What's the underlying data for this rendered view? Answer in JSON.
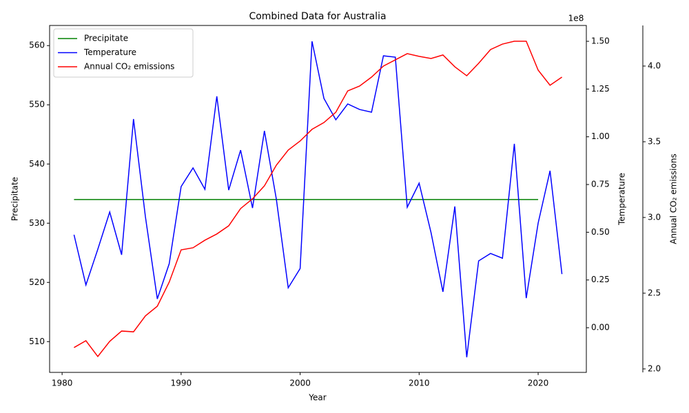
{
  "chart_data": {
    "type": "line",
    "title": "Combined Data for Australia",
    "x_label": "Year",
    "x": [
      1981,
      1982,
      1983,
      1984,
      1985,
      1986,
      1987,
      1988,
      1989,
      1990,
      1991,
      1992,
      1993,
      1994,
      1995,
      1996,
      1997,
      1998,
      1999,
      2000,
      2001,
      2002,
      2003,
      2004,
      2005,
      2006,
      2007,
      2008,
      2009,
      2010,
      2011,
      2012,
      2013,
      2014,
      2015,
      2016,
      2017,
      2018,
      2019,
      2020,
      2021,
      2022
    ],
    "xlim": [
      1978.95,
      2024.05
    ],
    "xticks": [
      1980,
      1990,
      2000,
      2010,
      2020
    ],
    "y_label": "Precipitate",
    "ylim": [
      504.8,
      563.4
    ],
    "yticks": [
      510,
      520,
      530,
      540,
      550,
      560
    ],
    "y2_label": "Temperature",
    "y2_offset_label": "1e8",
    "y2lim": [
      -0.234,
      1.583
    ],
    "y2ticks": [
      {
        "value": 0,
        "label": "0.00"
      },
      {
        "value": 0.25,
        "label": "0.25"
      },
      {
        "value": 0.5,
        "label": "0.50"
      },
      {
        "value": 0.75,
        "label": "0.75"
      },
      {
        "value": 1,
        "label": "1.00"
      },
      {
        "value": 1.25,
        "label": "1.25"
      },
      {
        "value": 1.5,
        "label": "1.50"
      }
    ],
    "y3_label": "Annual CO₂ emissions",
    "y3lim": [
      1.977,
      4.268
    ],
    "y3ticks": [
      {
        "value": 2,
        "label": "2.0"
      },
      {
        "value": 2.5,
        "label": "2.5"
      },
      {
        "value": 3,
        "label": "3.0"
      },
      {
        "value": 3.5,
        "label": "3.5"
      },
      {
        "value": 4,
        "label": "4.0"
      }
    ],
    "legend": "upper left",
    "series": [
      {
        "name": "Precipitate",
        "color": "#008000",
        "axis": "y",
        "values": [
          534,
          534,
          534,
          534,
          534,
          534,
          534,
          534,
          534,
          534,
          534,
          534,
          534,
          534,
          534,
          534,
          534,
          534,
          534,
          534,
          534,
          534,
          534,
          534,
          534,
          534,
          534,
          534,
          534,
          534,
          534,
          534,
          534,
          534,
          534,
          534,
          534,
          534,
          534,
          534,
          null,
          null
        ]
      },
      {
        "name": "Temperature",
        "color": "#0000ff",
        "axis": "y2",
        "values": [
          0.487,
          0.224,
          0.411,
          0.606,
          0.382,
          1.093,
          0.581,
          0.151,
          0.335,
          0.739,
          0.837,
          0.725,
          1.212,
          0.721,
          0.93,
          0.627,
          1.031,
          0.674,
          0.209,
          0.31,
          1.5,
          1.201,
          1.089,
          1.172,
          1.143,
          1.129,
          1.424,
          1.417,
          0.631,
          0.757,
          0.498,
          0.188,
          0.635,
          -0.155,
          0.35,
          0.389,
          0.364,
          0.963,
          0.155,
          0.548,
          0.822,
          0.281
        ]
      },
      {
        "name": "Annual CO₂ emissions",
        "color": "#ff0000",
        "axis": "y3",
        "values": [
          2.141,
          2.186,
          2.082,
          2.182,
          2.25,
          2.245,
          2.35,
          2.414,
          2.573,
          2.786,
          2.8,
          2.85,
          2.891,
          2.945,
          3.059,
          3.123,
          3.209,
          3.345,
          3.445,
          3.505,
          3.582,
          3.627,
          3.695,
          3.836,
          3.868,
          3.927,
          4.0,
          4.041,
          4.082,
          4.064,
          4.05,
          4.073,
          3.995,
          3.936,
          4.018,
          4.109,
          4.145,
          4.164,
          4.164,
          3.973,
          3.873,
          3.927
        ]
      }
    ]
  }
}
